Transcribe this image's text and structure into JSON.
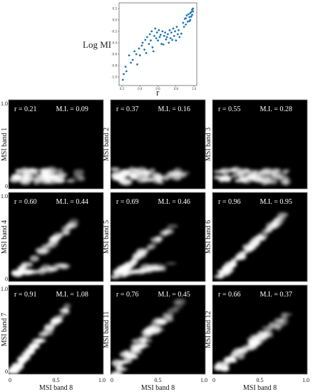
{
  "chart_data": [
    {
      "type": "scatter",
      "xlabel": "r",
      "ylabel": "Log MI",
      "xlim": [
        0.2,
        1.0
      ],
      "ylim": [
        -1.1,
        0.25
      ],
      "x_ticks": [
        "0.2",
        "0.4",
        "0.6",
        "0.8",
        "1.0"
      ],
      "y_ticks": [
        "0.2",
        "0.0",
        "-0.2",
        "-0.4",
        "-0.6",
        "-0.8",
        "-1.0"
      ],
      "marker_color": "#1f77b4",
      "points": [
        [
          0.21,
          -1.05
        ],
        [
          0.22,
          -0.95
        ],
        [
          0.24,
          -0.82
        ],
        [
          0.25,
          -0.9
        ],
        [
          0.28,
          -0.62
        ],
        [
          0.3,
          -0.75
        ],
        [
          0.32,
          -0.7
        ],
        [
          0.34,
          -0.55
        ],
        [
          0.36,
          -0.6
        ],
        [
          0.37,
          -0.78
        ],
        [
          0.39,
          -0.5
        ],
        [
          0.4,
          -0.62
        ],
        [
          0.42,
          -0.45
        ],
        [
          0.43,
          -0.4
        ],
        [
          0.45,
          -0.52
        ],
        [
          0.46,
          -0.35
        ],
        [
          0.47,
          -0.58
        ],
        [
          0.48,
          -0.3
        ],
        [
          0.5,
          -0.42
        ],
        [
          0.51,
          -0.25
        ],
        [
          0.52,
          -0.36
        ],
        [
          0.53,
          -0.2
        ],
        [
          0.54,
          -0.48
        ],
        [
          0.55,
          -0.55
        ],
        [
          0.56,
          -0.28
        ],
        [
          0.57,
          -0.15
        ],
        [
          0.58,
          -0.32
        ],
        [
          0.59,
          -0.22
        ],
        [
          0.6,
          -0.36
        ],
        [
          0.61,
          -0.18
        ],
        [
          0.62,
          -0.3
        ],
        [
          0.63,
          -0.26
        ],
        [
          0.64,
          -0.42
        ],
        [
          0.65,
          -0.2
        ],
        [
          0.66,
          -0.43
        ],
        [
          0.67,
          -0.28
        ],
        [
          0.68,
          -0.22
        ],
        [
          0.69,
          -0.34
        ],
        [
          0.7,
          -0.3
        ],
        [
          0.71,
          -0.25
        ],
        [
          0.72,
          -0.4
        ],
        [
          0.73,
          -0.18
        ],
        [
          0.74,
          -0.32
        ],
        [
          0.75,
          -0.22
        ],
        [
          0.76,
          -0.35
        ],
        [
          0.77,
          -0.15
        ],
        [
          0.78,
          -0.28
        ],
        [
          0.79,
          -0.2
        ],
        [
          0.8,
          -0.36
        ],
        [
          0.81,
          -0.12
        ],
        [
          0.82,
          -0.25
        ],
        [
          0.83,
          -0.18
        ],
        [
          0.84,
          -0.3
        ],
        [
          0.86,
          -0.24
        ],
        [
          0.88,
          -0.05
        ],
        [
          0.89,
          -0.12
        ],
        [
          0.9,
          0.02
        ],
        [
          0.91,
          0.03
        ],
        [
          0.91,
          -0.08
        ],
        [
          0.92,
          0.08
        ],
        [
          0.93,
          -0.03
        ],
        [
          0.94,
          0.1
        ],
        [
          0.95,
          0.05
        ],
        [
          0.95,
          -0.02
        ],
        [
          0.96,
          0.12
        ],
        [
          0.96,
          0.0
        ],
        [
          0.97,
          0.14
        ],
        [
          0.97,
          0.06
        ],
        [
          0.98,
          0.18
        ],
        [
          0.98,
          0.09
        ],
        [
          0.99,
          0.15
        ],
        [
          0.99,
          0.2
        ]
      ]
    },
    {
      "type": "heatmap",
      "xlabel": "MSI band 8",
      "x_ticks": [
        "0",
        "0.5",
        "1.0"
      ],
      "y_ticks": [
        "0",
        "1.0"
      ],
      "panels": [
        {
          "ylabel": "MSI band 1",
          "r": "r = 0.21",
          "mi": "M.I. = 0.09"
        },
        {
          "ylabel": "MSI band 2",
          "r": "r = 0.37",
          "mi": "M.I. = 0.16"
        },
        {
          "ylabel": "MSI band 3",
          "r": "r = 0.55",
          "mi": "M.I. = 0.28"
        },
        {
          "ylabel": "MSI band 4",
          "r": "r = 0.60",
          "mi": "M.I. = 0.44"
        },
        {
          "ylabel": "MSI band 5",
          "r": "r = 0.69",
          "mi": "M.I. = 0.46"
        },
        {
          "ylabel": "MSI band 6",
          "r": "r = 0.96",
          "mi": "M.I. = 0.95"
        },
        {
          "ylabel": "MSI band 7",
          "r": "r = 0.91",
          "mi": "M.I. = 1.08"
        },
        {
          "ylabel": "MSI band 11",
          "r": "r = 0.76",
          "mi": "M.I. = 0.45"
        },
        {
          "ylabel": "MSI band 12",
          "r": "r = 0.66",
          "mi": "M.I. = 0.37"
        }
      ]
    }
  ]
}
